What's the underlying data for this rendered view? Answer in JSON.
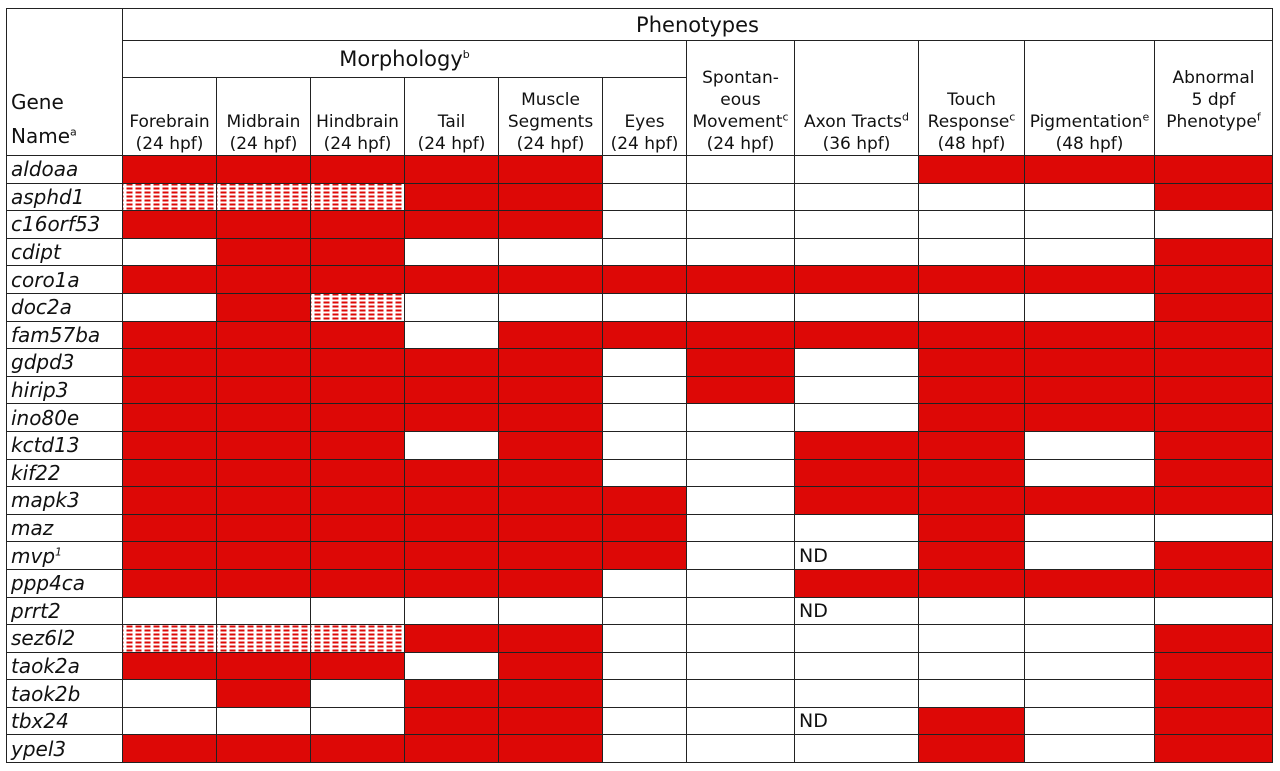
{
  "table": {
    "phenotypes_title": "Phenotypes",
    "morphology_title": "Morphology",
    "morphology_sup": "b",
    "gene_header": {
      "line1": "Gene",
      "line2": "Name",
      "sup": "a"
    },
    "columns": [
      {
        "l1": "",
        "l2": "Forebrain",
        "l3": "(24 hpf)",
        "sup": ""
      },
      {
        "l1": "",
        "l2": "Midbrain",
        "l3": "(24 hpf)",
        "sup": ""
      },
      {
        "l1": "",
        "l2": "Hindbrain",
        "l3": "(24 hpf)",
        "sup": ""
      },
      {
        "l1": "",
        "l2": "Tail",
        "l3": "(24 hpf)",
        "sup": ""
      },
      {
        "l1": "Muscle",
        "l2": "Segments",
        "l3": "(24 hpf)",
        "sup": ""
      },
      {
        "l1": "",
        "l2": "Eyes",
        "l3": "(24 hpf)",
        "sup": ""
      },
      {
        "l0": "Spontan-",
        "l1": "eous",
        "l2": "Movement",
        "l3": "(24 hpf)",
        "sup": "c"
      },
      {
        "l1": "",
        "l2": "Axon Tracts",
        "l3": "(36 hpf)",
        "sup": "d"
      },
      {
        "l1": "Touch",
        "l2": "Response",
        "l3": "(48 hpf)",
        "sup": "c"
      },
      {
        "l1": "",
        "l2": "Pigmentation",
        "l3": "(48 hpf)",
        "sup": "e"
      },
      {
        "l0": "Abnormal",
        "l1": "5 dpf",
        "l2": "Phenotype",
        "l3": "",
        "sup": "f"
      }
    ],
    "legend_codes": {
      "R": "#dd0806",
      "W": "#ffffff",
      "D": "dotted",
      "ND": "ND"
    },
    "rows": [
      {
        "gene": "aldoaa",
        "sup": "",
        "cells": [
          "R",
          "R",
          "R",
          "R",
          "R",
          "W",
          "W",
          "W",
          "R",
          "R",
          "R"
        ]
      },
      {
        "gene": "asphd1",
        "sup": "",
        "cells": [
          "D",
          "D",
          "D",
          "R",
          "R",
          "W",
          "W",
          "W",
          "W",
          "W",
          "R"
        ]
      },
      {
        "gene": "c16orf53",
        "sup": "",
        "cells": [
          "R",
          "R",
          "R",
          "R",
          "R",
          "W",
          "W",
          "W",
          "W",
          "W",
          "W"
        ]
      },
      {
        "gene": "cdipt",
        "sup": "",
        "cells": [
          "W",
          "R",
          "R",
          "W",
          "W",
          "W",
          "W",
          "W",
          "W",
          "W",
          "R"
        ]
      },
      {
        "gene": "coro1a",
        "sup": "",
        "cells": [
          "R",
          "R",
          "R",
          "R",
          "R",
          "R",
          "R",
          "R",
          "R",
          "R",
          "R"
        ]
      },
      {
        "gene": "doc2a",
        "sup": "",
        "cells": [
          "W",
          "R",
          "D",
          "W",
          "W",
          "W",
          "W",
          "W",
          "W",
          "W",
          "R"
        ]
      },
      {
        "gene": "fam57ba",
        "sup": "",
        "cells": [
          "R",
          "R",
          "R",
          "W",
          "R",
          "R",
          "R",
          "R",
          "R",
          "R",
          "R"
        ]
      },
      {
        "gene": "gdpd3",
        "sup": "",
        "cells": [
          "R",
          "R",
          "R",
          "R",
          "R",
          "W",
          "R",
          "W",
          "R",
          "R",
          "R"
        ]
      },
      {
        "gene": "hirip3",
        "sup": "",
        "cells": [
          "R",
          "R",
          "R",
          "R",
          "R",
          "W",
          "R",
          "W",
          "R",
          "R",
          "R"
        ]
      },
      {
        "gene": "ino80e",
        "sup": "",
        "cells": [
          "R",
          "R",
          "R",
          "R",
          "R",
          "W",
          "W",
          "W",
          "R",
          "R",
          "R"
        ]
      },
      {
        "gene": "kctd13",
        "sup": "",
        "cells": [
          "R",
          "R",
          "R",
          "W",
          "R",
          "W",
          "W",
          "R",
          "R",
          "W",
          "R"
        ]
      },
      {
        "gene": "kif22",
        "sup": "",
        "cells": [
          "R",
          "R",
          "R",
          "R",
          "R",
          "W",
          "W",
          "R",
          "R",
          "W",
          "R"
        ]
      },
      {
        "gene": "mapk3",
        "sup": "",
        "cells": [
          "R",
          "R",
          "R",
          "R",
          "R",
          "R",
          "W",
          "R",
          "R",
          "R",
          "R"
        ]
      },
      {
        "gene": "maz",
        "sup": "",
        "cells": [
          "R",
          "R",
          "R",
          "R",
          "R",
          "R",
          "W",
          "W",
          "R",
          "W",
          "W"
        ]
      },
      {
        "gene": "mvp",
        "sup": "1",
        "cells": [
          "R",
          "R",
          "R",
          "R",
          "R",
          "R",
          "W",
          "ND",
          "R",
          "W",
          "R"
        ]
      },
      {
        "gene": "ppp4ca",
        "sup": "",
        "cells": [
          "R",
          "R",
          "R",
          "R",
          "R",
          "W",
          "W",
          "R",
          "R",
          "R",
          "R"
        ]
      },
      {
        "gene": "prrt2",
        "sup": "",
        "cells": [
          "W",
          "W",
          "W",
          "W",
          "W",
          "W",
          "W",
          "ND",
          "W",
          "W",
          "W"
        ]
      },
      {
        "gene": "sez6l2",
        "sup": "",
        "cells": [
          "D",
          "D",
          "D",
          "R",
          "R",
          "W",
          "W",
          "W",
          "W",
          "W",
          "R"
        ]
      },
      {
        "gene": "taok2a",
        "sup": "",
        "cells": [
          "R",
          "R",
          "R",
          "W",
          "R",
          "W",
          "W",
          "W",
          "W",
          "W",
          "R"
        ]
      },
      {
        "gene": "taok2b",
        "sup": "",
        "cells": [
          "W",
          "R",
          "W",
          "R",
          "R",
          "W",
          "W",
          "W",
          "W",
          "W",
          "R"
        ]
      },
      {
        "gene": "tbx24",
        "sup": "",
        "cells": [
          "W",
          "W",
          "W",
          "R",
          "R",
          "W",
          "W",
          "ND",
          "R",
          "W",
          "R"
        ]
      },
      {
        "gene": "ypel3",
        "sup": "",
        "cells": [
          "R",
          "R",
          "R",
          "R",
          "R",
          "W",
          "W",
          "W",
          "R",
          "W",
          "R"
        ]
      }
    ]
  }
}
